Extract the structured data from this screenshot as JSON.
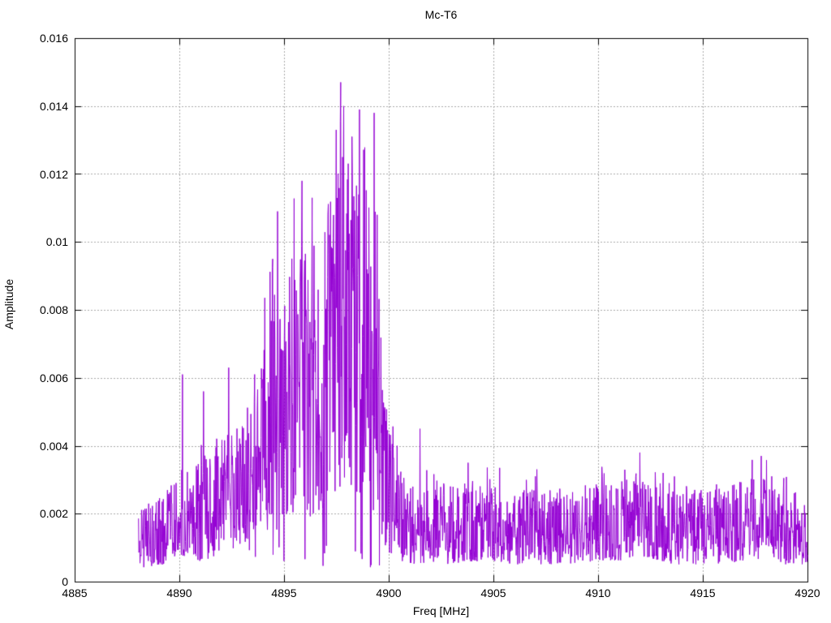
{
  "chart_data": {
    "type": "line",
    "title": "Mc-T6",
    "xlabel": "Freq [MHz]",
    "ylabel": "Amplitude",
    "xlim": [
      4885,
      4920
    ],
    "ylim": [
      0,
      0.016
    ],
    "xticks": [
      4885,
      4890,
      4895,
      4900,
      4905,
      4910,
      4915,
      4920
    ],
    "xtick_labels": [
      "4885",
      "4890",
      "4895",
      "4900",
      "4905",
      "4910",
      "4915",
      "4920"
    ],
    "yticks": [
      0,
      0.002,
      0.004,
      0.006,
      0.008,
      0.01,
      0.012,
      0.014,
      0.016
    ],
    "ytick_labels": [
      "0",
      "0.002",
      "0.004",
      "0.006",
      "0.008",
      "0.01",
      "0.012",
      "0.014",
      "0.016"
    ],
    "grid": true,
    "legend": "none",
    "line_color": "#9400d3",
    "grid_color": "#a9a9a9",
    "frame_color": "#000000",
    "x_range_of_data": [
      4888.05,
      4920
    ],
    "noise_envelope": [
      [
        4888.0,
        0.0004,
        0.0021
      ],
      [
        4889.2,
        0.0005,
        0.0026
      ],
      [
        4890.0,
        0.0008,
        0.0036
      ],
      [
        4891.0,
        0.0006,
        0.0038
      ],
      [
        4892.0,
        0.0008,
        0.0044
      ],
      [
        4893.0,
        0.001,
        0.0048
      ],
      [
        4893.6,
        0.0014,
        0.0058
      ],
      [
        4894.3,
        0.0018,
        0.0082
      ],
      [
        4895.2,
        0.002,
        0.0094
      ],
      [
        4896.0,
        0.0018,
        0.01
      ],
      [
        4897.0,
        0.0022,
        0.011
      ],
      [
        4897.8,
        0.0028,
        0.0126
      ],
      [
        4898.7,
        0.0024,
        0.012
      ],
      [
        4899.4,
        0.0018,
        0.0112
      ],
      [
        4899.8,
        0.001,
        0.0055
      ],
      [
        4900.3,
        0.0006,
        0.0036
      ],
      [
        4901.0,
        0.0005,
        0.0028
      ],
      [
        4902.5,
        0.0005,
        0.0029
      ],
      [
        4904.0,
        0.0006,
        0.003
      ],
      [
        4906.0,
        0.0005,
        0.0027
      ],
      [
        4908.0,
        0.0005,
        0.0028
      ],
      [
        4910.0,
        0.0006,
        0.0029
      ],
      [
        4911.8,
        0.0006,
        0.0031
      ],
      [
        4913.5,
        0.0005,
        0.0029
      ],
      [
        4915.5,
        0.0005,
        0.0027
      ],
      [
        4917.0,
        0.0006,
        0.003
      ],
      [
        4918.0,
        0.0007,
        0.0031
      ],
      [
        4919.0,
        0.0005,
        0.0028
      ],
      [
        4920.0,
        0.0005,
        0.0024
      ]
    ],
    "peaks": [
      [
        4890.15,
        0.0061
      ],
      [
        4891.15,
        0.0056
      ],
      [
        4892.35,
        0.0063
      ],
      [
        4893.6,
        0.0061
      ],
      [
        4894.45,
        0.0095
      ],
      [
        4894.7,
        0.0109
      ],
      [
        4895.85,
        0.0118
      ],
      [
        4896.35,
        0.0113
      ],
      [
        4897.5,
        0.0133
      ],
      [
        4897.7,
        0.0147
      ],
      [
        4897.85,
        0.014
      ],
      [
        4898.25,
        0.0131
      ],
      [
        4898.6,
        0.0139
      ],
      [
        4899.3,
        0.0138
      ],
      [
        4899.45,
        0.0108
      ],
      [
        4900.4,
        0.004
      ],
      [
        4901.5,
        0.0045
      ],
      [
        4903.8,
        0.0035
      ],
      [
        4907.0,
        0.0031
      ],
      [
        4910.2,
        0.0031
      ],
      [
        4912.0,
        0.0038
      ],
      [
        4913.1,
        0.0032
      ],
      [
        4917.8,
        0.0037
      ],
      [
        4918.3,
        0.0031
      ]
    ]
  }
}
